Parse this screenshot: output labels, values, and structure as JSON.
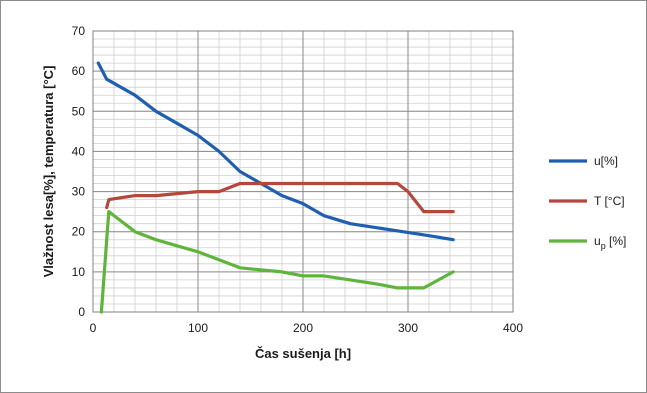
{
  "chart_data": {
    "type": "line",
    "xlabel": "Čas sušenja [h]",
    "ylabel": "Vlažnost lesa[%], temperatura [°C]",
    "xlim": [
      0,
      400
    ],
    "ylim": [
      0,
      70
    ],
    "xticks": [
      0,
      100,
      200,
      300,
      400
    ],
    "yticks": [
      0,
      10,
      20,
      30,
      40,
      50,
      60,
      70
    ],
    "grid": true,
    "legend_position": "right",
    "series": [
      {
        "name": "u[%]",
        "color": "#1f5fb0",
        "x": [
          5,
          13,
          40,
          60,
          80,
          100,
          120,
          140,
          160,
          180,
          200,
          220,
          245,
          270,
          295,
          320,
          343
        ],
        "y": [
          62,
          58,
          54,
          50,
          47,
          44,
          40,
          35,
          32,
          29,
          27,
          24,
          22,
          21,
          20,
          19,
          18
        ]
      },
      {
        "name": "T [°C]",
        "color": "#b4483c",
        "x": [
          13,
          15,
          40,
          60,
          80,
          100,
          120,
          140,
          160,
          180,
          200,
          220,
          245,
          270,
          290,
          300,
          315,
          343
        ],
        "y": [
          26,
          28,
          29,
          29,
          29.5,
          30,
          30,
          32,
          32,
          32,
          32,
          32,
          32,
          32,
          32,
          30,
          25,
          25
        ]
      },
      {
        "name": "u",
        "name_sub": "p",
        "name_suffix": " [%]",
        "color": "#5fb43c",
        "x": [
          8,
          15,
          40,
          60,
          80,
          100,
          120,
          140,
          160,
          180,
          200,
          220,
          245,
          270,
          290,
          315,
          343
        ],
        "y": [
          0,
          25,
          20,
          18,
          16.5,
          15,
          13,
          11,
          10.5,
          10,
          9,
          9,
          8,
          7,
          6,
          6,
          10
        ]
      }
    ]
  }
}
